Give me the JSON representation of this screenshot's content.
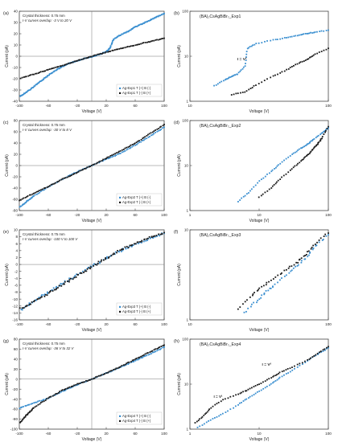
{
  "colors": {
    "blue": "#3a8fd0",
    "black": "#1a1a1a",
    "axis": "#444444",
    "bg": "#ffffff"
  },
  "chart_data": [
    {
      "id": "a",
      "panel_label": "(a)",
      "type": "scatter",
      "scale": "linear",
      "annotations": [
        "Crystal thickness: 0.75 mm",
        "I-V curves overlap: -3 V to 20 V"
      ],
      "xlabel": "Voltage (V)",
      "ylabel": "Current (pA)",
      "xlim": [
        -100,
        100
      ],
      "ylim": [
        -40,
        40
      ],
      "xticks": [
        -100,
        -60,
        -20,
        20,
        60,
        100
      ],
      "yticks": [
        -40,
        -30,
        -20,
        -10,
        0,
        10,
        20,
        30,
        40
      ],
      "legend": [
        "Ag-Exp1  T (+) B (-)",
        "Ag-Exp1  T (-) B (+)"
      ],
      "legend_position": "bottom-right",
      "series": [
        {
          "name": "Ag-Exp1  T (+) B (-)",
          "color": "blue",
          "points": [
            [
              -100,
              -36
            ],
            [
              -90,
              -32
            ],
            [
              -80,
              -27
            ],
            [
              -70,
              -22
            ],
            [
              -60,
              -17
            ],
            [
              -50,
              -12.5
            ],
            [
              -40,
              -9
            ],
            [
              -30,
              -6
            ],
            [
              -20,
              -4
            ],
            [
              -10,
              -2
            ],
            [
              0,
              -0.5
            ],
            [
              10,
              1.5
            ],
            [
              20,
              4
            ],
            [
              25,
              7
            ],
            [
              30,
              15
            ],
            [
              40,
              19
            ],
            [
              50,
              22
            ],
            [
              60,
              26
            ],
            [
              70,
              29
            ],
            [
              80,
              32
            ],
            [
              90,
              35
            ],
            [
              100,
              38
            ]
          ]
        },
        {
          "name": "Ag-Exp1  T (-) B (+)",
          "color": "black",
          "points": [
            [
              -100,
              -20
            ],
            [
              -80,
              -16
            ],
            [
              -60,
              -12
            ],
            [
              -40,
              -8
            ],
            [
              -20,
              -4
            ],
            [
              0,
              0
            ],
            [
              20,
              3.5
            ],
            [
              40,
              7
            ],
            [
              60,
              10
            ],
            [
              80,
              13
            ],
            [
              100,
              16
            ]
          ]
        }
      ]
    },
    {
      "id": "b",
      "panel_label": "(b)",
      "type": "scatter",
      "scale": "log-log",
      "title": "(BA)₂CsAgBiBr₇_Exp1",
      "xlabel": "Voltage (V)",
      "ylabel": "Current (pA)",
      "xlim": [
        10,
        100
      ],
      "ylim": [
        1,
        100
      ],
      "xticks": [
        10,
        100
      ],
      "yticks": [
        1,
        10,
        100
      ],
      "annotations": [
        "I = V²"
      ],
      "series": [
        {
          "name": "Ag-Exp1  T (+) B (-)",
          "color": "blue",
          "points": [
            [
              15,
              2.2
            ],
            [
              18,
              3
            ],
            [
              20,
              3.6
            ],
            [
              22,
              4
            ],
            [
              25,
              6
            ],
            [
              26,
              15
            ],
            [
              30,
              19
            ],
            [
              40,
              23
            ],
            [
              50,
              26
            ],
            [
              60,
              29
            ],
            [
              70,
              32
            ],
            [
              80,
              34
            ],
            [
              100,
              38
            ]
          ]
        },
        {
          "name": "Ag-Exp1  T (-) B (+)",
          "color": "black",
          "points": [
            [
              20,
              1.4
            ],
            [
              25,
              1.6
            ],
            [
              30,
              2.3
            ],
            [
              40,
              3.6
            ],
            [
              50,
              5
            ],
            [
              60,
              6.8
            ],
            [
              70,
              8.5
            ],
            [
              80,
              11
            ],
            [
              100,
              15
            ]
          ]
        }
      ]
    },
    {
      "id": "c",
      "panel_label": "(c)",
      "type": "scatter",
      "scale": "linear",
      "annotations": [
        "Crystal thickness: 0.75 mm",
        "I-V curves overlap: -30 V to 8 V"
      ],
      "xlabel": "Voltage (V)",
      "ylabel": "Current (pA)",
      "xlim": [
        -100,
        100
      ],
      "ylim": [
        -80,
        80
      ],
      "xticks": [
        -100,
        -60,
        -20,
        20,
        60,
        100
      ],
      "yticks": [
        -80,
        -60,
        -40,
        -20,
        0,
        20,
        40,
        60,
        80
      ],
      "legend": [
        "Ag-Exp2  T (+) B (-)",
        "Ag-Exp2  T (-) B (+)"
      ],
      "legend_position": "bottom-right",
      "series": [
        {
          "name": "Ag-Exp2  T (+) B (-)",
          "color": "blue",
          "points": [
            [
              -100,
              -75
            ],
            [
              -90,
              -64
            ],
            [
              -80,
              -54
            ],
            [
              -60,
              -38
            ],
            [
              -40,
              -24
            ],
            [
              -20,
              -11
            ],
            [
              0,
              0
            ],
            [
              20,
              11
            ],
            [
              40,
              22
            ],
            [
              60,
              36
            ],
            [
              80,
              52
            ],
            [
              100,
              68
            ]
          ]
        },
        {
          "name": "Ag-Exp2  T (-) B (+)",
          "color": "black",
          "points": [
            [
              -100,
              -62
            ],
            [
              -80,
              -49
            ],
            [
              -60,
              -37
            ],
            [
              -40,
              -24
            ],
            [
              -20,
              -12
            ],
            [
              0,
              0
            ],
            [
              20,
              13
            ],
            [
              40,
              26
            ],
            [
              60,
              40
            ],
            [
              80,
              56
            ],
            [
              100,
              73
            ]
          ]
        }
      ]
    },
    {
      "id": "d",
      "panel_label": "(d)",
      "type": "scatter",
      "scale": "log-log",
      "title": "(BA)₂CsAgBiBr₇_Exp2",
      "xlabel": "Voltage (V)",
      "ylabel": "Current (pA)",
      "xlim": [
        1,
        100
      ],
      "ylim": [
        1,
        100
      ],
      "xticks": [
        1,
        10,
        100
      ],
      "yticks": [
        1,
        10,
        100
      ],
      "series": [
        {
          "name": "Ag-Exp2  T (+) B (-)",
          "color": "blue",
          "points": [
            [
              5,
              1.6
            ],
            [
              7,
              2.5
            ],
            [
              10,
              4.5
            ],
            [
              15,
              7.5
            ],
            [
              20,
              11
            ],
            [
              30,
              18
            ],
            [
              40,
              24
            ],
            [
              50,
              30
            ],
            [
              60,
              37
            ],
            [
              80,
              52
            ],
            [
              100,
              68
            ]
          ]
        },
        {
          "name": "Ag-Exp2  T (-) B (+)",
          "color": "black",
          "points": [
            [
              10,
              2
            ],
            [
              15,
              3.2
            ],
            [
              20,
              5
            ],
            [
              30,
              8.5
            ],
            [
              40,
              12.5
            ],
            [
              50,
              17
            ],
            [
              60,
              23
            ],
            [
              70,
              30
            ],
            [
              80,
              40
            ],
            [
              100,
              73
            ]
          ]
        }
      ]
    },
    {
      "id": "e",
      "panel_label": "(e)",
      "type": "scatter",
      "scale": "linear",
      "annotations": [
        "Crystal thickness: 0.75 mm",
        "I-V curves overlap: -100 V to 100 V"
      ],
      "xlabel": "Voltage (V)",
      "ylabel": "Current (pA)",
      "xlim": [
        -100,
        100
      ],
      "ylim": [
        -16,
        10
      ],
      "xticks": [
        -100,
        -60,
        -20,
        20,
        60,
        100
      ],
      "yticks": [
        -16,
        -14,
        -12,
        -10,
        -8,
        -6,
        -4,
        -2,
        0,
        2,
        4,
        6,
        8,
        10
      ],
      "legend": [
        "Ag-Exp3  T (+) B (-)",
        "Ag-Exp3  T (-) B (+)"
      ],
      "legend_position": "bottom-right",
      "series": [
        {
          "name": "Ag-Exp3  T (+) B (-)",
          "color": "blue",
          "points": [
            [
              -100,
              -13.5
            ],
            [
              -80,
              -10.5
            ],
            [
              -60,
              -8
            ],
            [
              -40,
              -5.5
            ],
            [
              -20,
              -3
            ],
            [
              0,
              -0.5
            ],
            [
              20,
              1.8
            ],
            [
              40,
              4
            ],
            [
              60,
              5.8
            ],
            [
              80,
              7.5
            ],
            [
              100,
              9
            ]
          ]
        },
        {
          "name": "Ag-Exp3  T (-) B (+)",
          "color": "black",
          "points": [
            [
              -100,
              -13
            ],
            [
              -80,
              -10.8
            ],
            [
              -60,
              -8.4
            ],
            [
              -40,
              -5.8
            ],
            [
              -20,
              -3.2
            ],
            [
              0,
              -0.7
            ],
            [
              20,
              1.9
            ],
            [
              40,
              4.2
            ],
            [
              60,
              6.1
            ],
            [
              80,
              7.8
            ],
            [
              100,
              9.2
            ]
          ]
        }
      ]
    },
    {
      "id": "f",
      "panel_label": "(f)",
      "type": "scatter",
      "scale": "log-log",
      "title": "(BA)₂CsAgBiBr₇_Exp3",
      "xlabel": "Voltage (V)",
      "ylabel": "Current (pA)",
      "xlim": [
        10,
        100
      ],
      "ylim": [
        1,
        10
      ],
      "xticks": [
        10,
        100
      ],
      "yticks": [
        1,
        10
      ],
      "series": [
        {
          "name": "Ag-Exp3  T (+) B (-)",
          "color": "blue",
          "points": [
            [
              25,
              1.2
            ],
            [
              30,
              1.6
            ],
            [
              35,
              2
            ],
            [
              40,
              2.4
            ],
            [
              50,
              3.2
            ],
            [
              60,
              4
            ],
            [
              70,
              5
            ],
            [
              80,
              6.5
            ],
            [
              100,
              8.8
            ]
          ]
        },
        {
          "name": "Ag-Exp3  T (-) B (+)",
          "color": "black",
          "points": [
            [
              22,
              1.3
            ],
            [
              28,
              1.9
            ],
            [
              33,
              2.3
            ],
            [
              40,
              2.9
            ],
            [
              50,
              3.6
            ],
            [
              60,
              4.4
            ],
            [
              70,
              5.4
            ],
            [
              80,
              7
            ],
            [
              100,
              9.2
            ]
          ]
        }
      ]
    },
    {
      "id": "g",
      "panel_label": "(g)",
      "type": "scatter",
      "scale": "linear",
      "annotations": [
        "Crystal thickness: 0.75 mm",
        "I-V curves overlap: -36 V to 32 V"
      ],
      "xlabel": "Voltage (V)",
      "ylabel": "Current (pA)",
      "xlim": [
        -100,
        100
      ],
      "ylim": [
        -100,
        80
      ],
      "xticks": [
        -100,
        -60,
        -20,
        20,
        60,
        100
      ],
      "yticks": [
        -100,
        -80,
        -60,
        -40,
        -20,
        0,
        20,
        40,
        60,
        80
      ],
      "legend": [
        "Ag-Exp4  T (+) B (-)",
        "Ag-Exp4  T (-) B (+)"
      ],
      "legend_position": "bottom-right",
      "series": [
        {
          "name": "Ag-Exp4  T (+) B (-)",
          "color": "blue",
          "points": [
            [
              -100,
              -58
            ],
            [
              -80,
              -48
            ],
            [
              -60,
              -38
            ],
            [
              -40,
              -24
            ],
            [
              -20,
              -11
            ],
            [
              0,
              0
            ],
            [
              20,
              12
            ],
            [
              40,
              24
            ],
            [
              60,
              37
            ],
            [
              80,
              50
            ],
            [
              100,
              64
            ]
          ]
        },
        {
          "name": "Ag-Exp4  T (-) B (+)",
          "color": "black",
          "points": [
            [
              -100,
              -88
            ],
            [
              -90,
              -72
            ],
            [
              -80,
              -57
            ],
            [
              -60,
              -38
            ],
            [
              -40,
              -22
            ],
            [
              -20,
              -10
            ],
            [
              0,
              0
            ],
            [
              20,
              12
            ],
            [
              40,
              25
            ],
            [
              60,
              40
            ],
            [
              80,
              54
            ],
            [
              100,
              68
            ]
          ]
        }
      ]
    },
    {
      "id": "h",
      "panel_label": "(h)",
      "type": "scatter",
      "scale": "log-log",
      "title": "(BA)₂CsAgBiBr₇_Exp4",
      "xlabel": "Voltage (V)",
      "ylabel": "Current (pA)",
      "xlim": [
        1,
        100
      ],
      "ylim": [
        1,
        100
      ],
      "xticks": [
        1,
        10,
        100
      ],
      "yticks": [
        1,
        10,
        100
      ],
      "annotations": [
        "I = V¹",
        "I = V²"
      ],
      "series": [
        {
          "name": "Ag-Exp4  T (+) B (-)",
          "color": "blue",
          "points": [
            [
              1.3,
              1.1
            ],
            [
              2,
              1.6
            ],
            [
              3,
              2.2
            ],
            [
              5,
              3.5
            ],
            [
              7,
              5
            ],
            [
              10,
              7
            ],
            [
              15,
              10
            ],
            [
              20,
              14
            ],
            [
              30,
              20
            ],
            [
              50,
              33
            ],
            [
              70,
              46
            ],
            [
              100,
              64
            ]
          ]
        },
        {
          "name": "Ag-Exp4  T (-) B (+)",
          "color": "black",
          "points": [
            [
              1.2,
              1.4
            ],
            [
              1.6,
              2
            ],
            [
              2,
              3
            ],
            [
              3,
              4.5
            ],
            [
              5,
              6
            ],
            [
              7,
              7.5
            ],
            [
              10,
              10
            ],
            [
              15,
              14
            ],
            [
              20,
              18
            ],
            [
              30,
              24
            ],
            [
              50,
              34
            ],
            [
              70,
              48
            ],
            [
              100,
              68
            ]
          ]
        }
      ]
    }
  ]
}
